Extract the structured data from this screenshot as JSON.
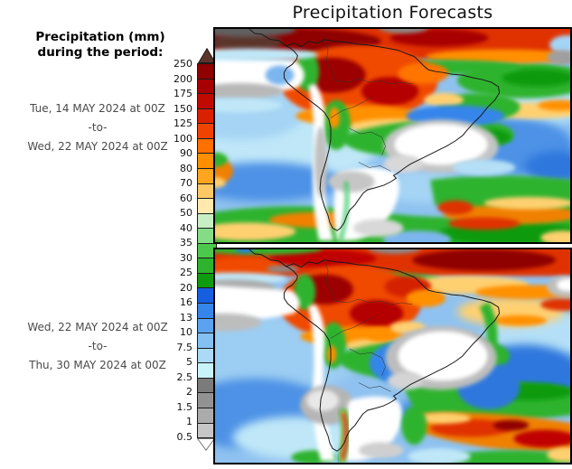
{
  "title": "Precipitation Forecasts",
  "legend": {
    "heading_line1": "Precipitation (mm)",
    "heading_line2": "during the period:"
  },
  "periods": [
    {
      "from": "Tue, 14 MAY 2024 at 00Z",
      "separator": "-to-",
      "to": "Wed, 22 MAY 2024 at 00Z"
    },
    {
      "from": "Wed, 22 MAY 2024 at 00Z",
      "separator": "-to-",
      "to": "Thu, 30 MAY 2024 at 00Z"
    }
  ],
  "colorbar": {
    "unit": "mm",
    "ticks": [
      "250",
      "200",
      "175",
      "150",
      "125",
      "100",
      "90",
      "80",
      "70",
      "60",
      "50",
      "40",
      "35",
      "30",
      "25",
      "20",
      "16",
      "13",
      "10",
      "7.5",
      "5",
      "2.5",
      "2",
      "1.5",
      "1",
      "0.5"
    ],
    "segment_colors_top_to_bottom": [
      "#8f0000",
      "#a60000",
      "#c00a00",
      "#d92100",
      "#f04300",
      "#ff7000",
      "#ff8f00",
      "#ffa51e",
      "#ffc864",
      "#ffe9ad",
      "#c8eec3",
      "#84dd84",
      "#4cc94c",
      "#2eb32e",
      "#0f9b0f",
      "#1660e0",
      "#3585ea",
      "#5ba3ee",
      "#85c0f2",
      "#aadaf6",
      "#c9f3fb",
      "#7b7b7b",
      "#929292",
      "#ababab",
      "#c6c6c6"
    ],
    "above_max_color": "#5c342b",
    "below_min_color": "#ffffff"
  }
}
